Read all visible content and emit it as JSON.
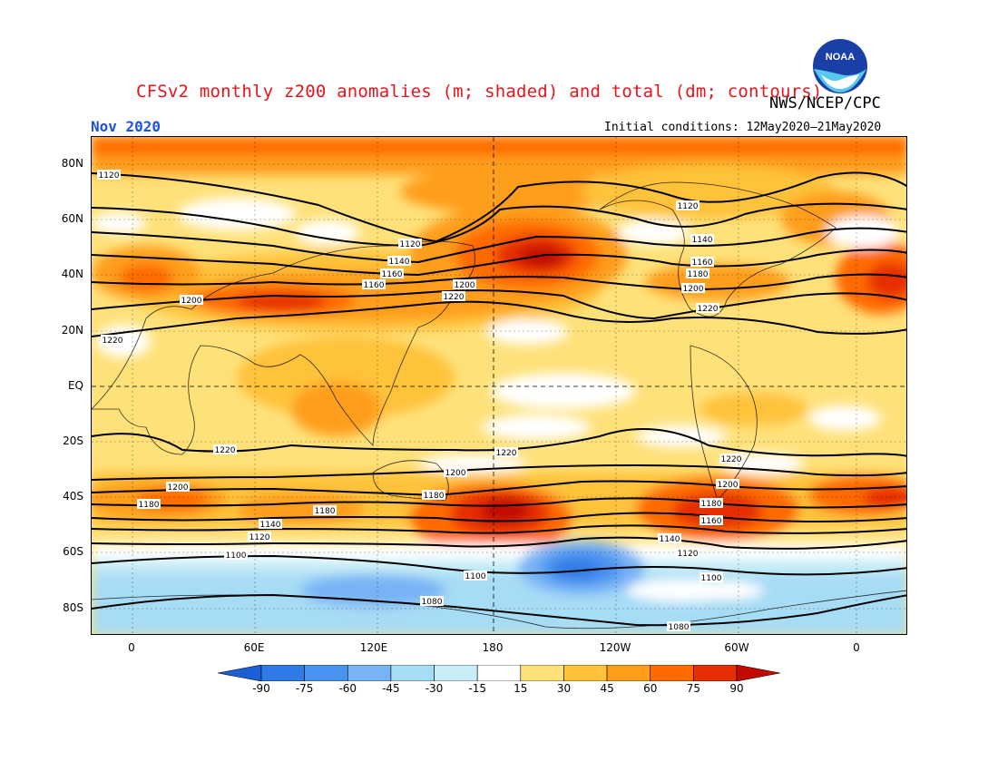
{
  "header": {
    "title": "CFSv2 monthly z200 anomalies (m; shaded) and total (dm; contours)",
    "org": "NWS/NCEP/CPC",
    "month": "Nov 2020",
    "initial_conditions": "Initial conditions: 12May2020–21May2020",
    "logo_text": "NOAA"
  },
  "axes": {
    "lat_labels": [
      "80N",
      "60N",
      "40N",
      "20N",
      "EQ",
      "20S",
      "40S",
      "60S",
      "80S"
    ],
    "lon_labels": [
      "0",
      "60E",
      "120E",
      "180",
      "120W",
      "60W",
      "0"
    ]
  },
  "colorbar": {
    "levels": [
      "-90",
      "-75",
      "-60",
      "-45",
      "-30",
      "-15",
      "15",
      "30",
      "45",
      "60",
      "75",
      "90"
    ],
    "colors": [
      "#1a5fd6",
      "#2f7ae6",
      "#4a92f0",
      "#78b3f5",
      "#a7dcf5",
      "#c7eef7",
      "#ffffff",
      "#ffe17a",
      "#ffc23a",
      "#ff9e1a",
      "#ff6a00",
      "#e62e00",
      "#c20a00"
    ]
  },
  "contour_labels": [
    "1080",
    "1100",
    "1120",
    "1140",
    "1160",
    "1180",
    "1200",
    "1220"
  ]
}
